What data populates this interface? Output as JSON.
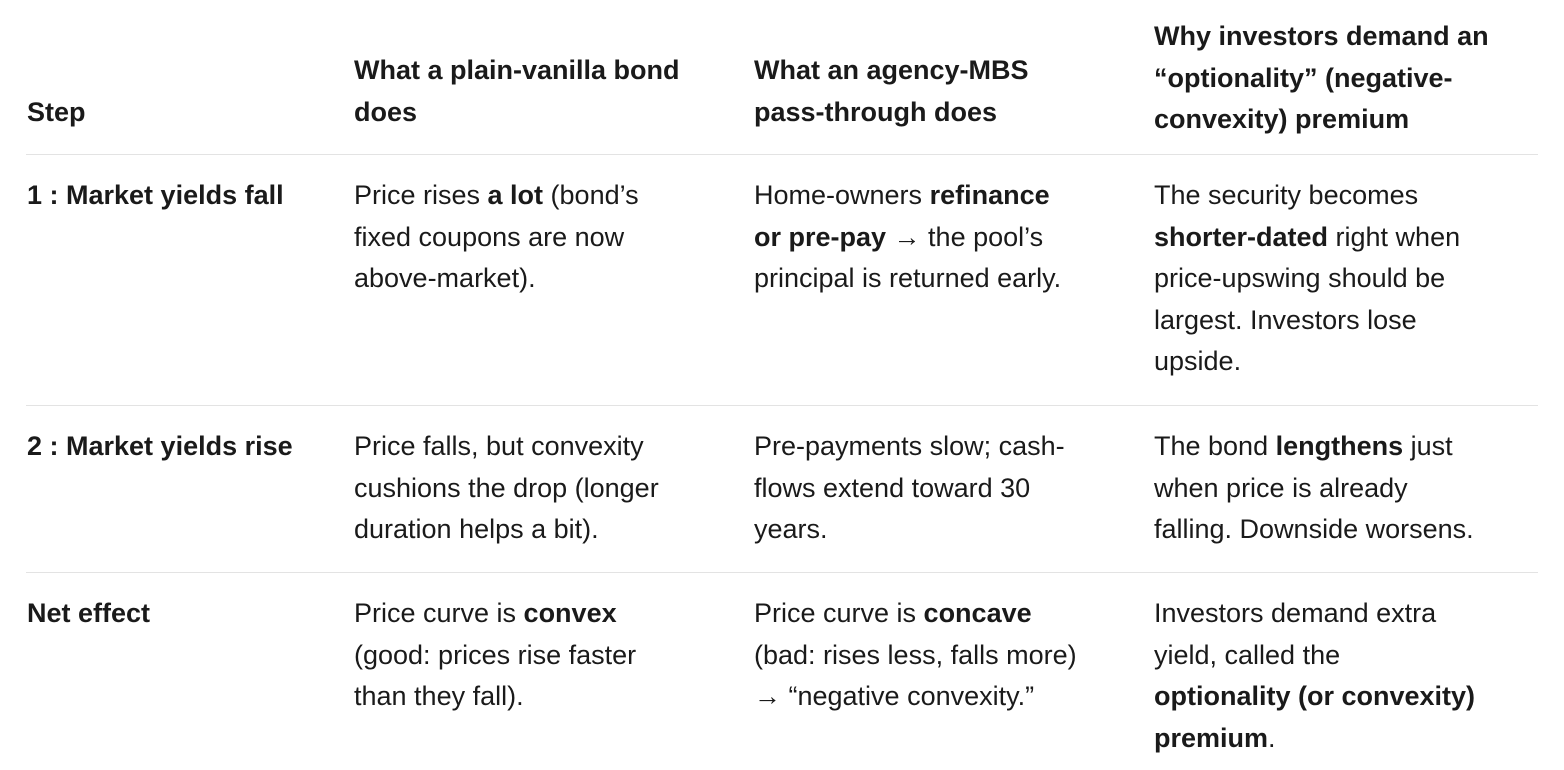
{
  "header": {
    "step": "Step",
    "bond": [
      "What a plain-vanilla bond",
      "does"
    ],
    "mbs": [
      "What an agency-MBS",
      "pass-through does"
    ],
    "premium": [
      "Why investors demand an",
      "“optionality” (negative-",
      "convexity) premium"
    ]
  },
  "rows": [
    {
      "step": "1 : Market yields fall",
      "bond": [
        [
          "Price rises ",
          "a lot",
          " (bond’s"
        ],
        [
          "fixed coupons are now"
        ],
        [
          "above-market)."
        ]
      ],
      "mbs": [
        [
          "Home-owners ",
          "refinance"
        ],
        [
          "",
          "or pre-pay",
          " → the pool’s"
        ],
        [
          "principal is returned early."
        ]
      ],
      "premium": [
        [
          "The security becomes"
        ],
        [
          "",
          "shorter-dated",
          " right when"
        ],
        [
          "price-upswing should be"
        ],
        [
          "largest. Investors lose"
        ],
        [
          "upside."
        ]
      ]
    },
    {
      "step": "2 : Market yields rise",
      "bond": [
        [
          "Price falls, but convexity"
        ],
        [
          "cushions the drop (longer"
        ],
        [
          "duration helps a bit)."
        ]
      ],
      "mbs": [
        [
          "Pre-payments slow; cash-"
        ],
        [
          "flows extend toward 30"
        ],
        [
          "years."
        ]
      ],
      "premium": [
        [
          "The bond ",
          "lengthens",
          " just"
        ],
        [
          "when price is already"
        ],
        [
          "falling. Downside worsens."
        ]
      ]
    },
    {
      "step": "Net effect",
      "bond": [
        [
          "Price curve is ",
          "convex"
        ],
        [
          "(good: prices rise faster"
        ],
        [
          "than they fall)."
        ]
      ],
      "mbs": [
        [
          "Price curve is ",
          "concave"
        ],
        [
          "(bad: rises less, falls more)"
        ],
        [
          "→ “negative convexity.”"
        ]
      ],
      "premium": [
        [
          "Investors demand extra"
        ],
        [
          "yield, called the"
        ],
        [
          "",
          "optionality (or convexity)"
        ],
        [
          "",
          "premium",
          "."
        ]
      ]
    }
  ]
}
